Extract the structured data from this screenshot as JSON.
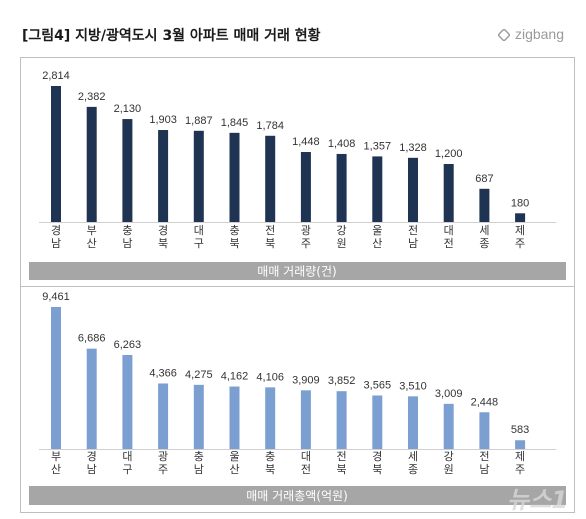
{
  "header": {
    "title": "[그림4] 지방/광역도시 3월 아파트 매매 거래 현황",
    "logo_text": "zigbang"
  },
  "watermark": "뉴스1",
  "chart_data": [
    {
      "type": "bar",
      "xlabel": "매매 거래량(건)",
      "categories": [
        "경남",
        "부산",
        "충남",
        "경북",
        "대구",
        "충북",
        "전북",
        "광주",
        "강원",
        "울산",
        "전남",
        "대전",
        "세종",
        "제주"
      ],
      "values": [
        2814,
        2382,
        2130,
        1903,
        1887,
        1845,
        1784,
        1448,
        1408,
        1357,
        1328,
        1200,
        687,
        180
      ],
      "labels": [
        "2,814",
        "2,382",
        "2,130",
        "1,903",
        "1,887",
        "1,845",
        "1,784",
        "1,448",
        "1,408",
        "1,357",
        "1,328",
        "1,200",
        "687",
        "180"
      ],
      "color": "#1f3352",
      "ylim": [
        0,
        2814
      ],
      "grid": false
    },
    {
      "type": "bar",
      "xlabel": "매매 거래총액(억원)",
      "categories": [
        "부산",
        "경남",
        "대구",
        "광주",
        "충남",
        "울산",
        "충북",
        "대전",
        "전북",
        "경북",
        "세종",
        "강원",
        "전남",
        "제주"
      ],
      "values": [
        9461,
        6686,
        6263,
        4366,
        4275,
        4162,
        4106,
        3909,
        3852,
        3565,
        3510,
        3009,
        2448,
        583
      ],
      "labels": [
        "9,461",
        "6,686",
        "6,263",
        "4,366",
        "4,275",
        "4,162",
        "4,106",
        "3,909",
        "3,852",
        "3,565",
        "3,510",
        "3,009",
        "2,448",
        "583"
      ],
      "color": "#7c9fd1",
      "ylim": [
        0,
        9461
      ],
      "grid": false
    }
  ]
}
